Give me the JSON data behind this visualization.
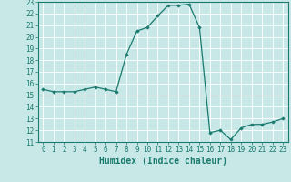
{
  "x": [
    0,
    1,
    2,
    3,
    4,
    5,
    6,
    7,
    8,
    9,
    10,
    11,
    12,
    13,
    14,
    15,
    16,
    17,
    18,
    19,
    20,
    21,
    22,
    23
  ],
  "y": [
    15.5,
    15.3,
    15.3,
    15.3,
    15.5,
    15.7,
    15.5,
    15.3,
    18.5,
    20.5,
    20.8,
    21.8,
    22.7,
    22.7,
    22.8,
    20.8,
    11.8,
    12.0,
    11.2,
    12.2,
    12.5,
    12.5,
    12.7,
    13.0
  ],
  "xlabel": "Humidex (Indice chaleur)",
  "xlim": [
    -0.5,
    23.5
  ],
  "ylim": [
    11,
    23
  ],
  "yticks": [
    11,
    12,
    13,
    14,
    15,
    16,
    17,
    18,
    19,
    20,
    21,
    22,
    23
  ],
  "xticks": [
    0,
    1,
    2,
    3,
    4,
    5,
    6,
    7,
    8,
    9,
    10,
    11,
    12,
    13,
    14,
    15,
    16,
    17,
    18,
    19,
    20,
    21,
    22,
    23
  ],
  "line_color": "#1a7a6e",
  "marker": "D",
  "marker_size": 1.8,
  "bg_color": "#c8e8e8",
  "grid_color": "#ffffff",
  "tick_label_fontsize": 5.5,
  "xlabel_fontsize": 7.0,
  "line_width": 0.9
}
